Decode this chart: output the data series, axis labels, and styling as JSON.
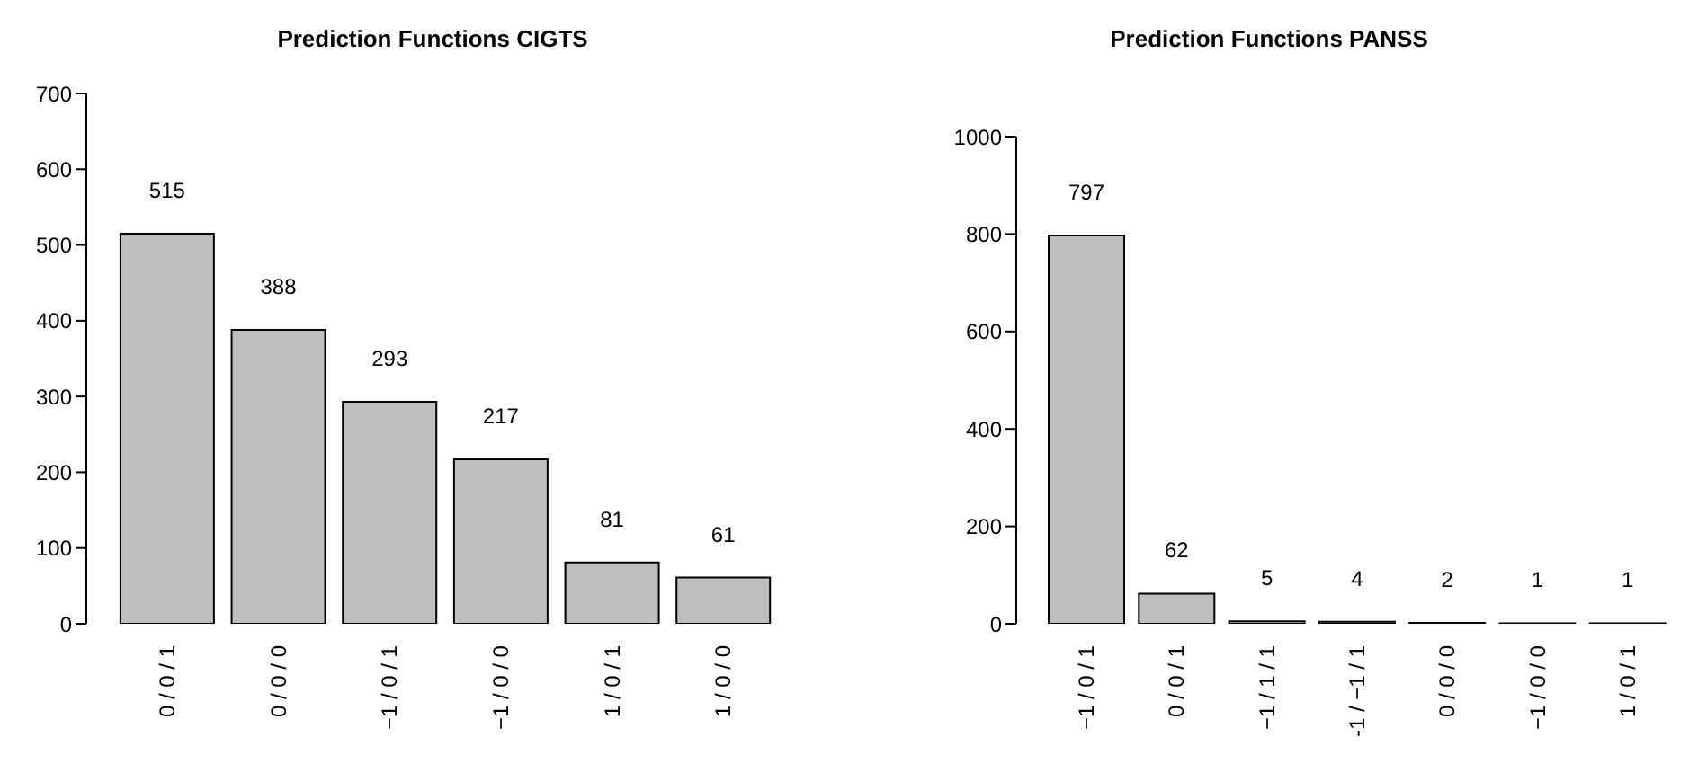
{
  "chart_data": [
    {
      "type": "bar",
      "title": "Prediction Functions CIGTS",
      "categories": [
        "0 / 0 / 1",
        "0 / 0 / 0",
        "−1 / 0 / 1",
        "−1 / 0 / 0",
        "1 / 0 / 1",
        "1 / 0 / 0"
      ],
      "values": [
        515,
        388,
        293,
        217,
        81,
        61
      ],
      "color": "#bebebe",
      "ylim": [
        0,
        700
      ],
      "yticks": [
        0,
        100,
        200,
        300,
        400,
        500,
        600,
        700
      ],
      "data_labels": true,
      "grid": false,
      "legend": false
    },
    {
      "type": "bar",
      "title": "Prediction Functions PANSS",
      "categories": [
        "−1 / 0 / 1",
        "0 / 0 / 1",
        "−1 / 1 / 1",
        "-1 / −1 / 1",
        "0 / 0 / 0",
        "−1 / 0 / 0",
        "1 / 0 / 1"
      ],
      "values": [
        797,
        62,
        5,
        4,
        2,
        1,
        1
      ],
      "color": "#bebebe",
      "ylim": [
        0,
        1000
      ],
      "yticks": [
        0,
        200,
        400,
        600,
        800,
        1000
      ],
      "data_labels": true,
      "grid": false,
      "legend": false
    }
  ]
}
